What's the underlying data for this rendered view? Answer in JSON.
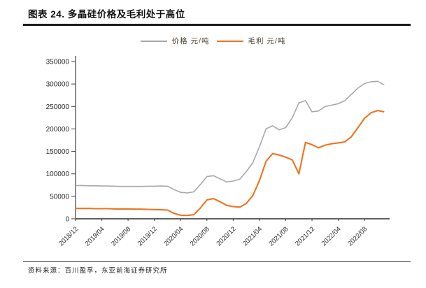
{
  "page": {
    "title": "图表 24. 多晶硅价格及毛利处于高位",
    "source": "资料来源：百川盈孚，东亚前海证券研究所"
  },
  "colors": {
    "price_line": "#a8a8a8",
    "margin_line": "#ee7420",
    "axis": "#404040",
    "tick_label": "#2b2b2b"
  },
  "chart_data": {
    "type": "line",
    "title": "",
    "xlabel": "",
    "ylabel": "",
    "ylim": [
      0,
      350000
    ],
    "y_ticks": [
      0,
      50000,
      100000,
      150000,
      200000,
      250000,
      300000,
      350000
    ],
    "x_tick_labels": [
      "2018/12",
      "2019/04",
      "2019/08",
      "2019/12",
      "2020/04",
      "2020/08",
      "2020/12",
      "2021/04",
      "2021/08",
      "2021/12",
      "2022/04",
      "2022/08"
    ],
    "legend_position": "top-center",
    "grid": false,
    "x": [
      "2018/12",
      "2019/01",
      "2019/02",
      "2019/03",
      "2019/04",
      "2019/05",
      "2019/06",
      "2019/07",
      "2019/08",
      "2019/09",
      "2019/10",
      "2019/11",
      "2019/12",
      "2020/01",
      "2020/02",
      "2020/03",
      "2020/04",
      "2020/05",
      "2020/06",
      "2020/07",
      "2020/08",
      "2020/09",
      "2020/10",
      "2020/11",
      "2020/12",
      "2021/01",
      "2021/02",
      "2021/03",
      "2021/04",
      "2021/05",
      "2021/06",
      "2021/07",
      "2021/08",
      "2021/09",
      "2021/10",
      "2021/11",
      "2021/12",
      "2022/01",
      "2022/02",
      "2022/03",
      "2022/04",
      "2022/05",
      "2022/06",
      "2022/07",
      "2022/08",
      "2022/09",
      "2022/10",
      "2022/11"
    ],
    "series": [
      {
        "name": "价格 元/吨",
        "color": "#a8a8a8",
        "values": [
          74000,
          74000,
          73500,
          73500,
          73000,
          73000,
          72500,
          72000,
          72000,
          72000,
          72000,
          72500,
          72500,
          73000,
          72500,
          65000,
          59000,
          57500,
          60000,
          76000,
          94000,
          96000,
          89000,
          82000,
          84000,
          88000,
          105000,
          125000,
          160000,
          200000,
          207000,
          198000,
          203000,
          225000,
          258000,
          263000,
          238000,
          240000,
          250000,
          253000,
          256000,
          263000,
          277000,
          291000,
          301000,
          305000,
          306000,
          298000
        ]
      },
      {
        "name": "毛利 元/吨",
        "color": "#ee7420",
        "values": [
          23000,
          23000,
          23000,
          22500,
          22500,
          22500,
          22000,
          22000,
          22000,
          21500,
          21500,
          21000,
          20500,
          20000,
          19500,
          12000,
          8000,
          7500,
          9000,
          24000,
          42000,
          45000,
          38000,
          30000,
          27000,
          26000,
          34000,
          52000,
          85000,
          128000,
          145000,
          142000,
          137000,
          131000,
          100000,
          170000,
          165000,
          158000,
          164000,
          167000,
          169000,
          171000,
          183000,
          203000,
          224000,
          236000,
          241000,
          238000
        ]
      }
    ]
  }
}
